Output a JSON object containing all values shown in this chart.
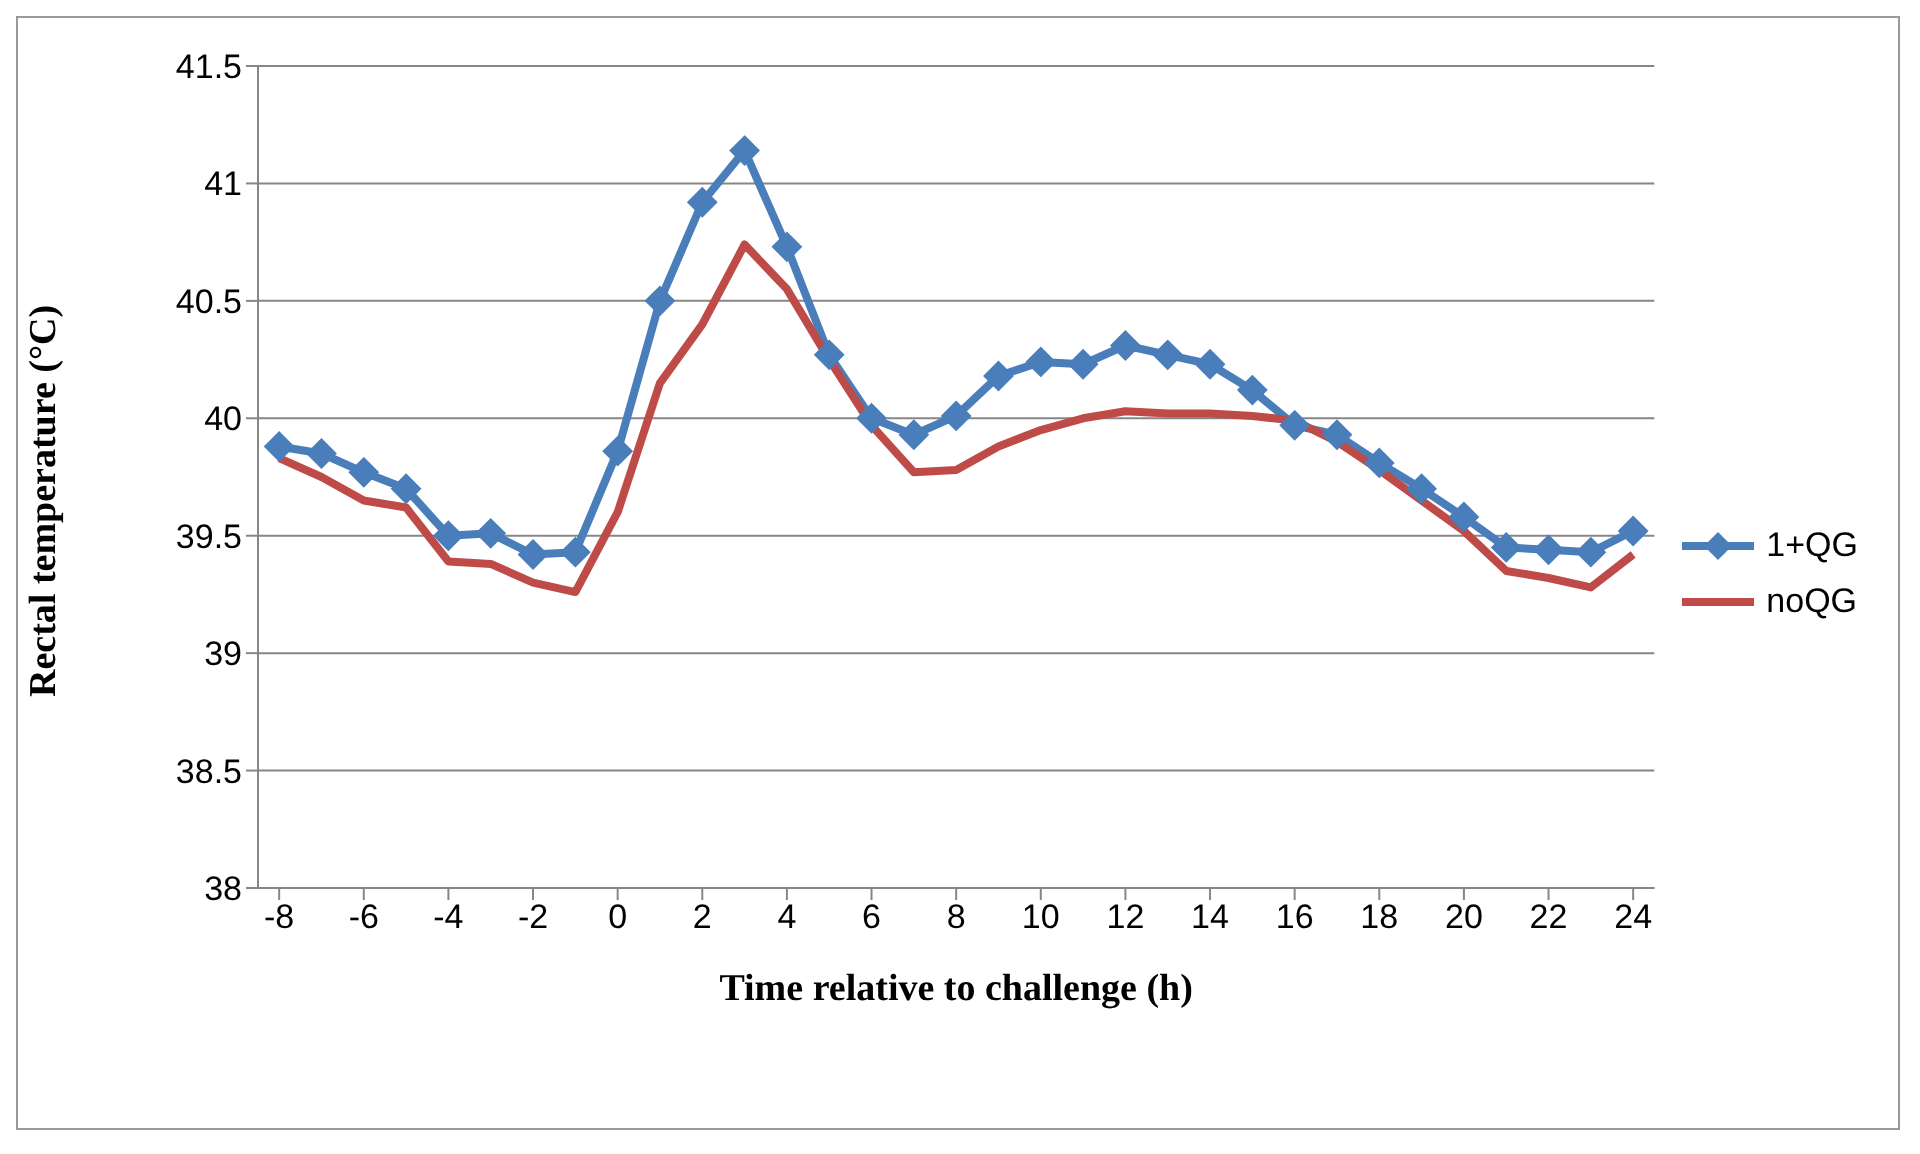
{
  "chart_data": {
    "type": "line",
    "xlabel": "Time relative to challenge (h)",
    "ylabel": "Rectal temperature (°C)",
    "x": [
      -8,
      -7,
      -6,
      -5,
      -4,
      -3,
      -2,
      -1,
      0,
      1,
      2,
      3,
      4,
      5,
      6,
      7,
      8,
      9,
      10,
      11,
      12,
      13,
      14,
      15,
      16,
      17,
      18,
      19,
      20,
      21,
      22,
      23,
      24
    ],
    "xlim": [
      -8.5,
      24.5
    ],
    "xticks": [
      -8,
      -6,
      -4,
      -2,
      0,
      2,
      4,
      6,
      8,
      10,
      12,
      14,
      16,
      18,
      20,
      22,
      24
    ],
    "ylim": [
      38,
      41.5
    ],
    "yticks": [
      38,
      38.5,
      39,
      39.5,
      40,
      40.5,
      41,
      41.5
    ],
    "grid": "y",
    "legend": "right",
    "series": [
      {
        "name": "1+QG",
        "color": "#4a7ebb",
        "marker": "diamond",
        "values": [
          39.88,
          39.85,
          39.77,
          39.7,
          39.5,
          39.51,
          39.42,
          39.43,
          39.86,
          40.5,
          40.92,
          41.14,
          40.73,
          40.27,
          40.0,
          39.93,
          40.01,
          40.18,
          40.24,
          40.23,
          40.31,
          40.27,
          40.23,
          40.12,
          39.97,
          39.93,
          39.81,
          39.7,
          39.58,
          39.45,
          39.44,
          39.43,
          39.52
        ]
      },
      {
        "name": "noQG",
        "color": "#be4b48",
        "marker": "none",
        "values": [
          39.83,
          39.75,
          39.65,
          39.62,
          39.39,
          39.38,
          39.3,
          39.26,
          39.6,
          40.15,
          40.4,
          40.74,
          40.55,
          40.25,
          39.97,
          39.77,
          39.78,
          39.88,
          39.95,
          40.0,
          40.03,
          40.02,
          40.02,
          40.01,
          39.99,
          39.9,
          39.78,
          39.65,
          39.52,
          39.35,
          39.32,
          39.28,
          39.42
        ]
      }
    ]
  }
}
